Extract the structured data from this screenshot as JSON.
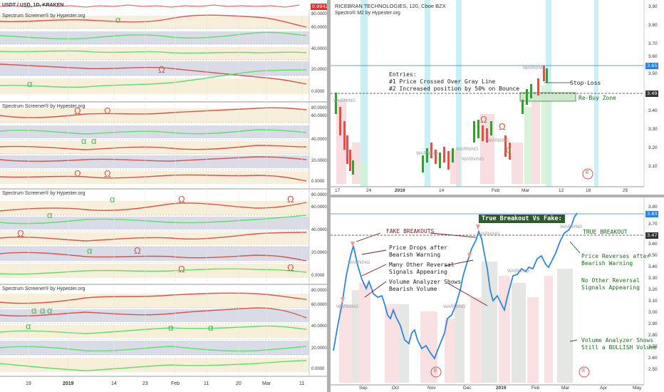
{
  "left_panel": {
    "symbol": "USDT / USD, 1D, KRAKEN",
    "price_badge": "0.9942",
    "screeners": [
      {
        "title": "Spectrum Screener® by Hypester.org",
        "scale": [
          "80.0000",
          "60.0000",
          "40.0000",
          "20.0000",
          "0.0000"
        ]
      },
      {
        "title": "Spectrum Screener® by Hypester.org",
        "scale": [
          "80.0000",
          "60.0000",
          "40.0000",
          "20.0000",
          "0.0000"
        ]
      },
      {
        "title": "Spectrum Screener® by Hypester.org",
        "scale": [
          "80.0000",
          "60.0000",
          "40.0000",
          "20.0000",
          "0.0000"
        ]
      },
      {
        "title": "Spectrum Screener® by Hypester.org",
        "scale": [
          "80.0000",
          "60.0000",
          "40.0000",
          "20.0000",
          "0.0000"
        ]
      }
    ],
    "x_ticks": [
      "19",
      "2019",
      "14",
      "23",
      "Feb",
      "11",
      "20",
      "Mar",
      "11"
    ],
    "symbols": {
      "alpha": "α",
      "omega": "Ω"
    }
  },
  "top_right": {
    "title": "RICEBRAN TECHNOLOGIES, 120, Cboe BZX",
    "subtitle": "Spectro® M2 by Hypester.org",
    "y_ticks": [
      "3.90",
      "3.80",
      "3.70",
      "3.60",
      "3.50",
      "3.40",
      "3.30",
      "3.20",
      "3.10"
    ],
    "price_tag_top": "3.65",
    "price_tag_mid": "3.49",
    "x_ticks": [
      "17",
      "24",
      "2019",
      "14",
      "Feb",
      "Mar",
      "12",
      "18",
      "25"
    ],
    "entries_text": "Entries:\n#1 Price Crossed Over Gray Line\n#2 Increased position by 50% on Bounce",
    "stop_loss": "Stop-Loss",
    "rebuy": "Re-Buy Zone",
    "warning": "WARNING",
    "e_marker": "E"
  },
  "bottom_right": {
    "headline": "True Breakout Vs Fake:",
    "y_ticks": [
      "3.80",
      "3.70",
      "3.60",
      "3.50",
      "3.40",
      "3.30",
      "3.20",
      "3.10",
      "3.00",
      "2.90",
      "2.80",
      "2.70",
      "2.60",
      "2.50"
    ],
    "price_tag_top": "3.83",
    "price_tag_mid": "3.47",
    "x_ticks": [
      "Sep",
      "Oct",
      "Nov",
      "Dec",
      "2019",
      "Feb",
      "Mar",
      "Apr",
      "May"
    ],
    "fake_breakouts": "FAKE BREAKOUTS",
    "true_breakout": "TRUE BREAKOUT",
    "left_notes": [
      "Price Drops after\nBearish Warning",
      "Many Other Reversal\nSignals Appearing",
      "Volume Analyzer Shows\nBearish Volume"
    ],
    "right_notes": [
      "Price Reverses after\nBearish Warning",
      "No Other Reversal\nSignals Appearing",
      "Volume Analyzer Shows\nStill a BULLISH Volume"
    ],
    "warning": "WARNING",
    "e_marker": "E"
  },
  "colors": {
    "green_line": "#5ee06a",
    "red_line": "#d9534f",
    "band_cream": "#f7efd9",
    "band_gray": "#d9dbe6",
    "price_blue": "#2f86d6",
    "cyan_band": "#c9f0f5",
    "badge_red": "#e0322b",
    "tag_blue": "#2f7fd6",
    "tag_dark": "#333333"
  }
}
